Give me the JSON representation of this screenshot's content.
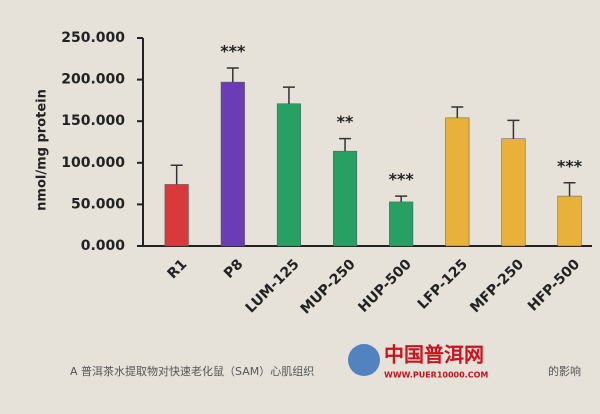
{
  "chart_data": {
    "type": "bar",
    "y_label": "nmol/mg protein",
    "categories": [
      "R1",
      "P8",
      "LUM-125",
      "MUP-250",
      "HUP-500",
      "LFP-125",
      "MFP-250",
      "HFP-500"
    ],
    "values": [
      74,
      197,
      171,
      114,
      53,
      154,
      129,
      60
    ],
    "errors": [
      23,
      17,
      20,
      15,
      7,
      13,
      22,
      16
    ],
    "colors": [
      "#d9393b",
      "#6a3cb5",
      "#27a064",
      "#27a064",
      "#27a064",
      "#e8b23a",
      "#e8b23a",
      "#e8b23a"
    ],
    "value_annotations": [
      null,
      "***",
      null,
      "**",
      "***",
      null,
      null,
      "***"
    ],
    "ylim": [
      0,
      250
    ],
    "yticks": [
      {
        "value": 0,
        "label": "0.000"
      },
      {
        "value": 50,
        "label": "50.000"
      },
      {
        "value": 100,
        "label": "100.000"
      },
      {
        "value": 150,
        "label": "150.000"
      },
      {
        "value": 200,
        "label": "200.000"
      },
      {
        "value": 250,
        "label": "250.000"
      }
    ],
    "caption": "A 普洱茶水提取物对快速老化鼠（SAM）心肌组织",
    "caption_end": "的影响",
    "watermark": "中国普洱网",
    "watermark_url": "WWW.PUER10000.COM"
  }
}
